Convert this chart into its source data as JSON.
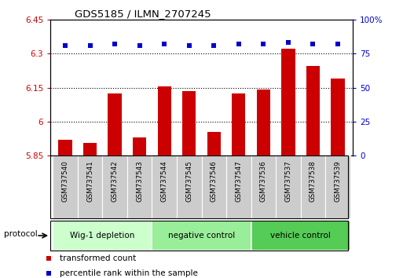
{
  "title": "GDS5185 / ILMN_2707245",
  "samples": [
    "GSM737540",
    "GSM737541",
    "GSM737542",
    "GSM737543",
    "GSM737544",
    "GSM737545",
    "GSM737546",
    "GSM737547",
    "GSM737536",
    "GSM737537",
    "GSM737538",
    "GSM737539"
  ],
  "transformed_counts": [
    5.92,
    5.905,
    6.125,
    5.93,
    6.155,
    6.135,
    5.955,
    6.125,
    6.14,
    6.32,
    6.245,
    6.19
  ],
  "percentile_ranks": [
    81,
    81,
    82,
    81,
    82,
    81,
    81,
    82,
    82,
    83,
    82,
    82
  ],
  "ylim_left": [
    5.85,
    6.45
  ],
  "ylim_right": [
    0,
    100
  ],
  "yticks_left": [
    5.85,
    6.0,
    6.15,
    6.3,
    6.45
  ],
  "yticks_right": [
    0,
    25,
    50,
    75,
    100
  ],
  "ytick_labels_left": [
    "5.85",
    "6",
    "6.15",
    "6.3",
    "6.45"
  ],
  "ytick_labels_right": [
    "0",
    "25",
    "50",
    "75",
    "100%"
  ],
  "hlines": [
    6.0,
    6.15,
    6.3
  ],
  "groups": [
    {
      "label": "Wig-1 depletion",
      "start": 0,
      "end": 3
    },
    {
      "label": "negative control",
      "start": 4,
      "end": 7
    },
    {
      "label": "vehicle control",
      "start": 8,
      "end": 11
    }
  ],
  "group_colors": [
    "#ccffcc",
    "#99ee99",
    "#55cc55"
  ],
  "bar_color": "#cc0000",
  "dot_color": "#0000cc",
  "bar_width": 0.55,
  "protocol_label": "protocol",
  "legend_items": [
    {
      "label": "transformed count",
      "color": "#cc0000"
    },
    {
      "label": "percentile rank within the sample",
      "color": "#0000cc"
    }
  ],
  "grid_linestyle": ":",
  "grid_color": "black",
  "grid_linewidth": 0.8,
  "sample_bg_color": "#cccccc",
  "plot_bg_color": "#ffffff",
  "spine_color": "black"
}
